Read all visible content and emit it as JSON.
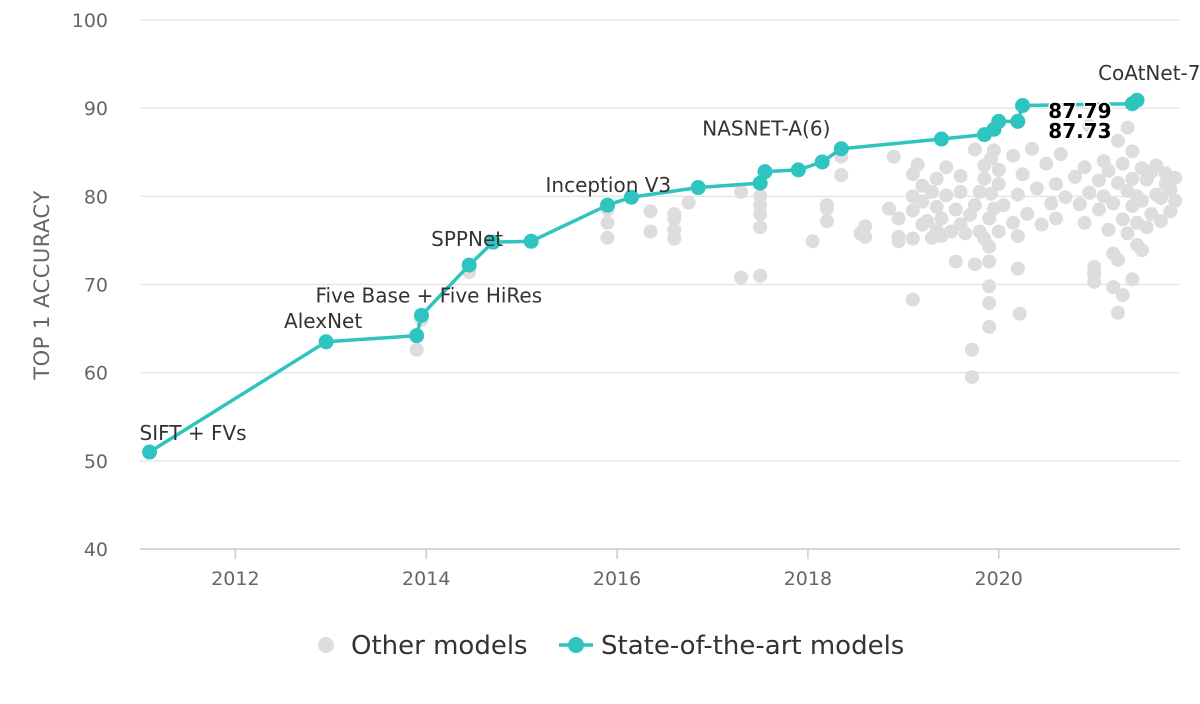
{
  "chart_data": {
    "type": "scatter",
    "ylabel": "TOP 1 ACCURACY",
    "xlabel": "",
    "xlim": [
      2011.0,
      2021.9
    ],
    "ylim": [
      40,
      100
    ],
    "x_ticks": [
      2012,
      2014,
      2016,
      2018,
      2020
    ],
    "y_ticks": [
      40,
      50,
      60,
      70,
      80,
      90,
      100
    ],
    "grid": "horizontal",
    "legend_position": "bottom-center",
    "colors": {
      "sota": "#2ec4c0",
      "other": "#dddddd",
      "grid": "#e6e6e6",
      "axis": "#cccccc",
      "text": "#333333",
      "tick_text": "#666666"
    },
    "legend": [
      {
        "label": "Other models",
        "series": "other"
      },
      {
        "label": "State-of-the-art models",
        "series": "sota"
      }
    ],
    "series": [
      {
        "name": "State-of-the-art models",
        "key": "sota",
        "style": "line+marker",
        "points": [
          [
            2011.1,
            51.0
          ],
          [
            2012.95,
            63.5
          ],
          [
            2013.9,
            64.2
          ],
          [
            2013.95,
            66.5
          ],
          [
            2014.45,
            72.2
          ],
          [
            2014.7,
            74.8
          ],
          [
            2015.1,
            74.9
          ],
          [
            2015.9,
            79.0
          ],
          [
            2016.15,
            79.9
          ],
          [
            2016.85,
            81.0
          ],
          [
            2017.5,
            81.5
          ],
          [
            2017.55,
            82.8
          ],
          [
            2017.9,
            83.0
          ],
          [
            2018.15,
            83.9
          ],
          [
            2018.35,
            85.4
          ],
          [
            2019.4,
            86.5
          ],
          [
            2019.85,
            87.0
          ],
          [
            2019.95,
            87.6
          ],
          [
            2020.0,
            88.5
          ],
          [
            2020.2,
            88.5
          ],
          [
            2020.25,
            90.3
          ],
          [
            2021.4,
            90.5
          ],
          [
            2021.45,
            90.9
          ]
        ]
      },
      {
        "name": "Other models",
        "key": "other",
        "style": "marker",
        "points": [
          [
            2013.9,
            62.6
          ],
          [
            2013.95,
            66.0
          ],
          [
            2014.45,
            71.4
          ],
          [
            2015.9,
            75.3
          ],
          [
            2015.9,
            77.0
          ],
          [
            2015.9,
            78.5
          ],
          [
            2016.35,
            76.0
          ],
          [
            2016.35,
            78.3
          ],
          [
            2016.6,
            75.2
          ],
          [
            2016.6,
            76.2
          ],
          [
            2016.6,
            77.5
          ],
          [
            2016.6,
            78.0
          ],
          [
            2016.75,
            79.3
          ],
          [
            2017.3,
            70.8
          ],
          [
            2017.3,
            80.5
          ],
          [
            2017.5,
            71.0
          ],
          [
            2017.5,
            76.5
          ],
          [
            2017.5,
            78.0
          ],
          [
            2017.5,
            79.0
          ],
          [
            2017.5,
            80.0
          ],
          [
            2018.05,
            74.9
          ],
          [
            2018.2,
            77.2
          ],
          [
            2018.2,
            78.6
          ],
          [
            2018.2,
            79.0
          ],
          [
            2018.35,
            82.4
          ],
          [
            2018.35,
            84.5
          ],
          [
            2018.55,
            75.8
          ],
          [
            2018.6,
            75.4
          ],
          [
            2018.6,
            76.6
          ],
          [
            2018.85,
            78.6
          ],
          [
            2018.9,
            84.5
          ],
          [
            2018.95,
            74.9
          ],
          [
            2018.95,
            75.4
          ],
          [
            2018.95,
            77.5
          ],
          [
            2019.1,
            68.3
          ],
          [
            2019.1,
            75.2
          ],
          [
            2019.1,
            78.4
          ],
          [
            2019.1,
            80.0
          ],
          [
            2019.1,
            82.5
          ],
          [
            2019.15,
            83.6
          ],
          [
            2019.2,
            76.8
          ],
          [
            2019.2,
            79.4
          ],
          [
            2019.2,
            81.2
          ],
          [
            2019.25,
            77.2
          ],
          [
            2019.3,
            75.3
          ],
          [
            2019.3,
            80.5
          ],
          [
            2019.35,
            76.2
          ],
          [
            2019.35,
            78.8
          ],
          [
            2019.35,
            82.0
          ],
          [
            2019.4,
            75.5
          ],
          [
            2019.4,
            77.5
          ],
          [
            2019.45,
            80.1
          ],
          [
            2019.45,
            83.3
          ],
          [
            2019.5,
            76.0
          ],
          [
            2019.55,
            72.6
          ],
          [
            2019.55,
            78.5
          ],
          [
            2019.6,
            76.8
          ],
          [
            2019.6,
            80.5
          ],
          [
            2019.6,
            82.3
          ],
          [
            2019.65,
            75.8
          ],
          [
            2019.7,
            77.9
          ],
          [
            2019.72,
            59.5
          ],
          [
            2019.72,
            62.6
          ],
          [
            2019.75,
            72.3
          ],
          [
            2019.75,
            79.0
          ],
          [
            2019.75,
            85.3
          ],
          [
            2019.8,
            76.0
          ],
          [
            2019.8,
            80.5
          ],
          [
            2019.85,
            75.2
          ],
          [
            2019.85,
            82.0
          ],
          [
            2019.85,
            83.5
          ],
          [
            2019.9,
            65.2
          ],
          [
            2019.9,
            67.9
          ],
          [
            2019.9,
            69.8
          ],
          [
            2019.9,
            72.6
          ],
          [
            2019.9,
            74.3
          ],
          [
            2019.9,
            77.5
          ],
          [
            2019.92,
            80.3
          ],
          [
            2019.92,
            84.3
          ],
          [
            2019.95,
            78.6
          ],
          [
            2019.95,
            85.2
          ],
          [
            2020.0,
            76.0
          ],
          [
            2020.0,
            81.4
          ],
          [
            2020.0,
            83.0
          ],
          [
            2020.05,
            79.0
          ],
          [
            2020.15,
            77.0
          ],
          [
            2020.15,
            84.6
          ],
          [
            2020.2,
            71.8
          ],
          [
            2020.2,
            75.5
          ],
          [
            2020.2,
            80.2
          ],
          [
            2020.22,
            66.7
          ],
          [
            2020.25,
            82.5
          ],
          [
            2020.3,
            78.0
          ],
          [
            2020.35,
            85.4
          ],
          [
            2020.4,
            80.9
          ],
          [
            2020.45,
            76.8
          ],
          [
            2020.5,
            83.7
          ],
          [
            2020.55,
            79.2
          ],
          [
            2020.6,
            77.5
          ],
          [
            2020.6,
            81.4
          ],
          [
            2020.65,
            84.8
          ],
          [
            2020.7,
            79.9
          ],
          [
            2020.8,
            82.2
          ],
          [
            2020.85,
            79.1
          ],
          [
            2020.9,
            77.0
          ],
          [
            2020.9,
            83.3
          ],
          [
            2020.95,
            80.4
          ],
          [
            2020.95,
            88.0
          ],
          [
            2021.0,
            70.3
          ],
          [
            2021.0,
            71.2
          ],
          [
            2021.0,
            72.0
          ],
          [
            2021.05,
            78.5
          ],
          [
            2021.05,
            81.8
          ],
          [
            2021.1,
            80.0
          ],
          [
            2021.1,
            84.0
          ],
          [
            2021.15,
            76.2
          ],
          [
            2021.15,
            82.9
          ],
          [
            2021.2,
            69.7
          ],
          [
            2021.2,
            73.5
          ],
          [
            2021.2,
            79.2
          ],
          [
            2021.25,
            66.8
          ],
          [
            2021.25,
            72.8
          ],
          [
            2021.25,
            81.5
          ],
          [
            2021.25,
            86.3
          ],
          [
            2021.3,
            68.8
          ],
          [
            2021.3,
            77.4
          ],
          [
            2021.3,
            83.7
          ],
          [
            2021.35,
            75.8
          ],
          [
            2021.35,
            80.6
          ],
          [
            2021.35,
            87.8
          ],
          [
            2021.4,
            70.6
          ],
          [
            2021.4,
            78.9
          ],
          [
            2021.4,
            82.0
          ],
          [
            2021.4,
            85.1
          ],
          [
            2021.45,
            74.5
          ],
          [
            2021.45,
            77.0
          ],
          [
            2021.45,
            80.0
          ],
          [
            2021.5,
            73.9
          ],
          [
            2021.5,
            79.5
          ],
          [
            2021.5,
            83.2
          ],
          [
            2021.55,
            76.5
          ],
          [
            2021.55,
            81.9
          ],
          [
            2021.6,
            78.0
          ],
          [
            2021.6,
            82.8
          ],
          [
            2021.65,
            80.2
          ],
          [
            2021.65,
            83.5
          ],
          [
            2021.7,
            77.2
          ],
          [
            2021.7,
            79.8
          ],
          [
            2021.75,
            81.4
          ],
          [
            2021.75,
            82.6
          ],
          [
            2021.8,
            78.3
          ],
          [
            2021.8,
            80.8
          ],
          [
            2021.85,
            79.5
          ],
          [
            2021.85,
            82.1
          ]
        ]
      }
    ],
    "annotations": [
      {
        "text": "SIFT + FVs",
        "x": 2011.1,
        "y": 51.0,
        "kind": "label"
      },
      {
        "text": "AlexNet",
        "x": 2012.95,
        "y": 63.5,
        "kind": "label"
      },
      {
        "text": "Five Base + Five HiRes",
        "x": 2013.95,
        "y": 66.5,
        "kind": "label"
      },
      {
        "text": "SPPNet",
        "x": 2014.45,
        "y": 72.2,
        "kind": "label"
      },
      {
        "text": "Inception V3",
        "x": 2015.9,
        "y": 79.0,
        "kind": "label"
      },
      {
        "text": "NASNET-A(6)",
        "x": 2018.35,
        "y": 85.4,
        "kind": "label"
      },
      {
        "text": "CoAtNet-7",
        "x": 2021.45,
        "y": 90.9,
        "kind": "label"
      },
      {
        "text": "87.79",
        "x": 2021.4,
        "y": 90.5,
        "kind": "callout"
      },
      {
        "text": "87.73",
        "x": 2021.4,
        "y": 87.3,
        "kind": "callout"
      }
    ]
  }
}
